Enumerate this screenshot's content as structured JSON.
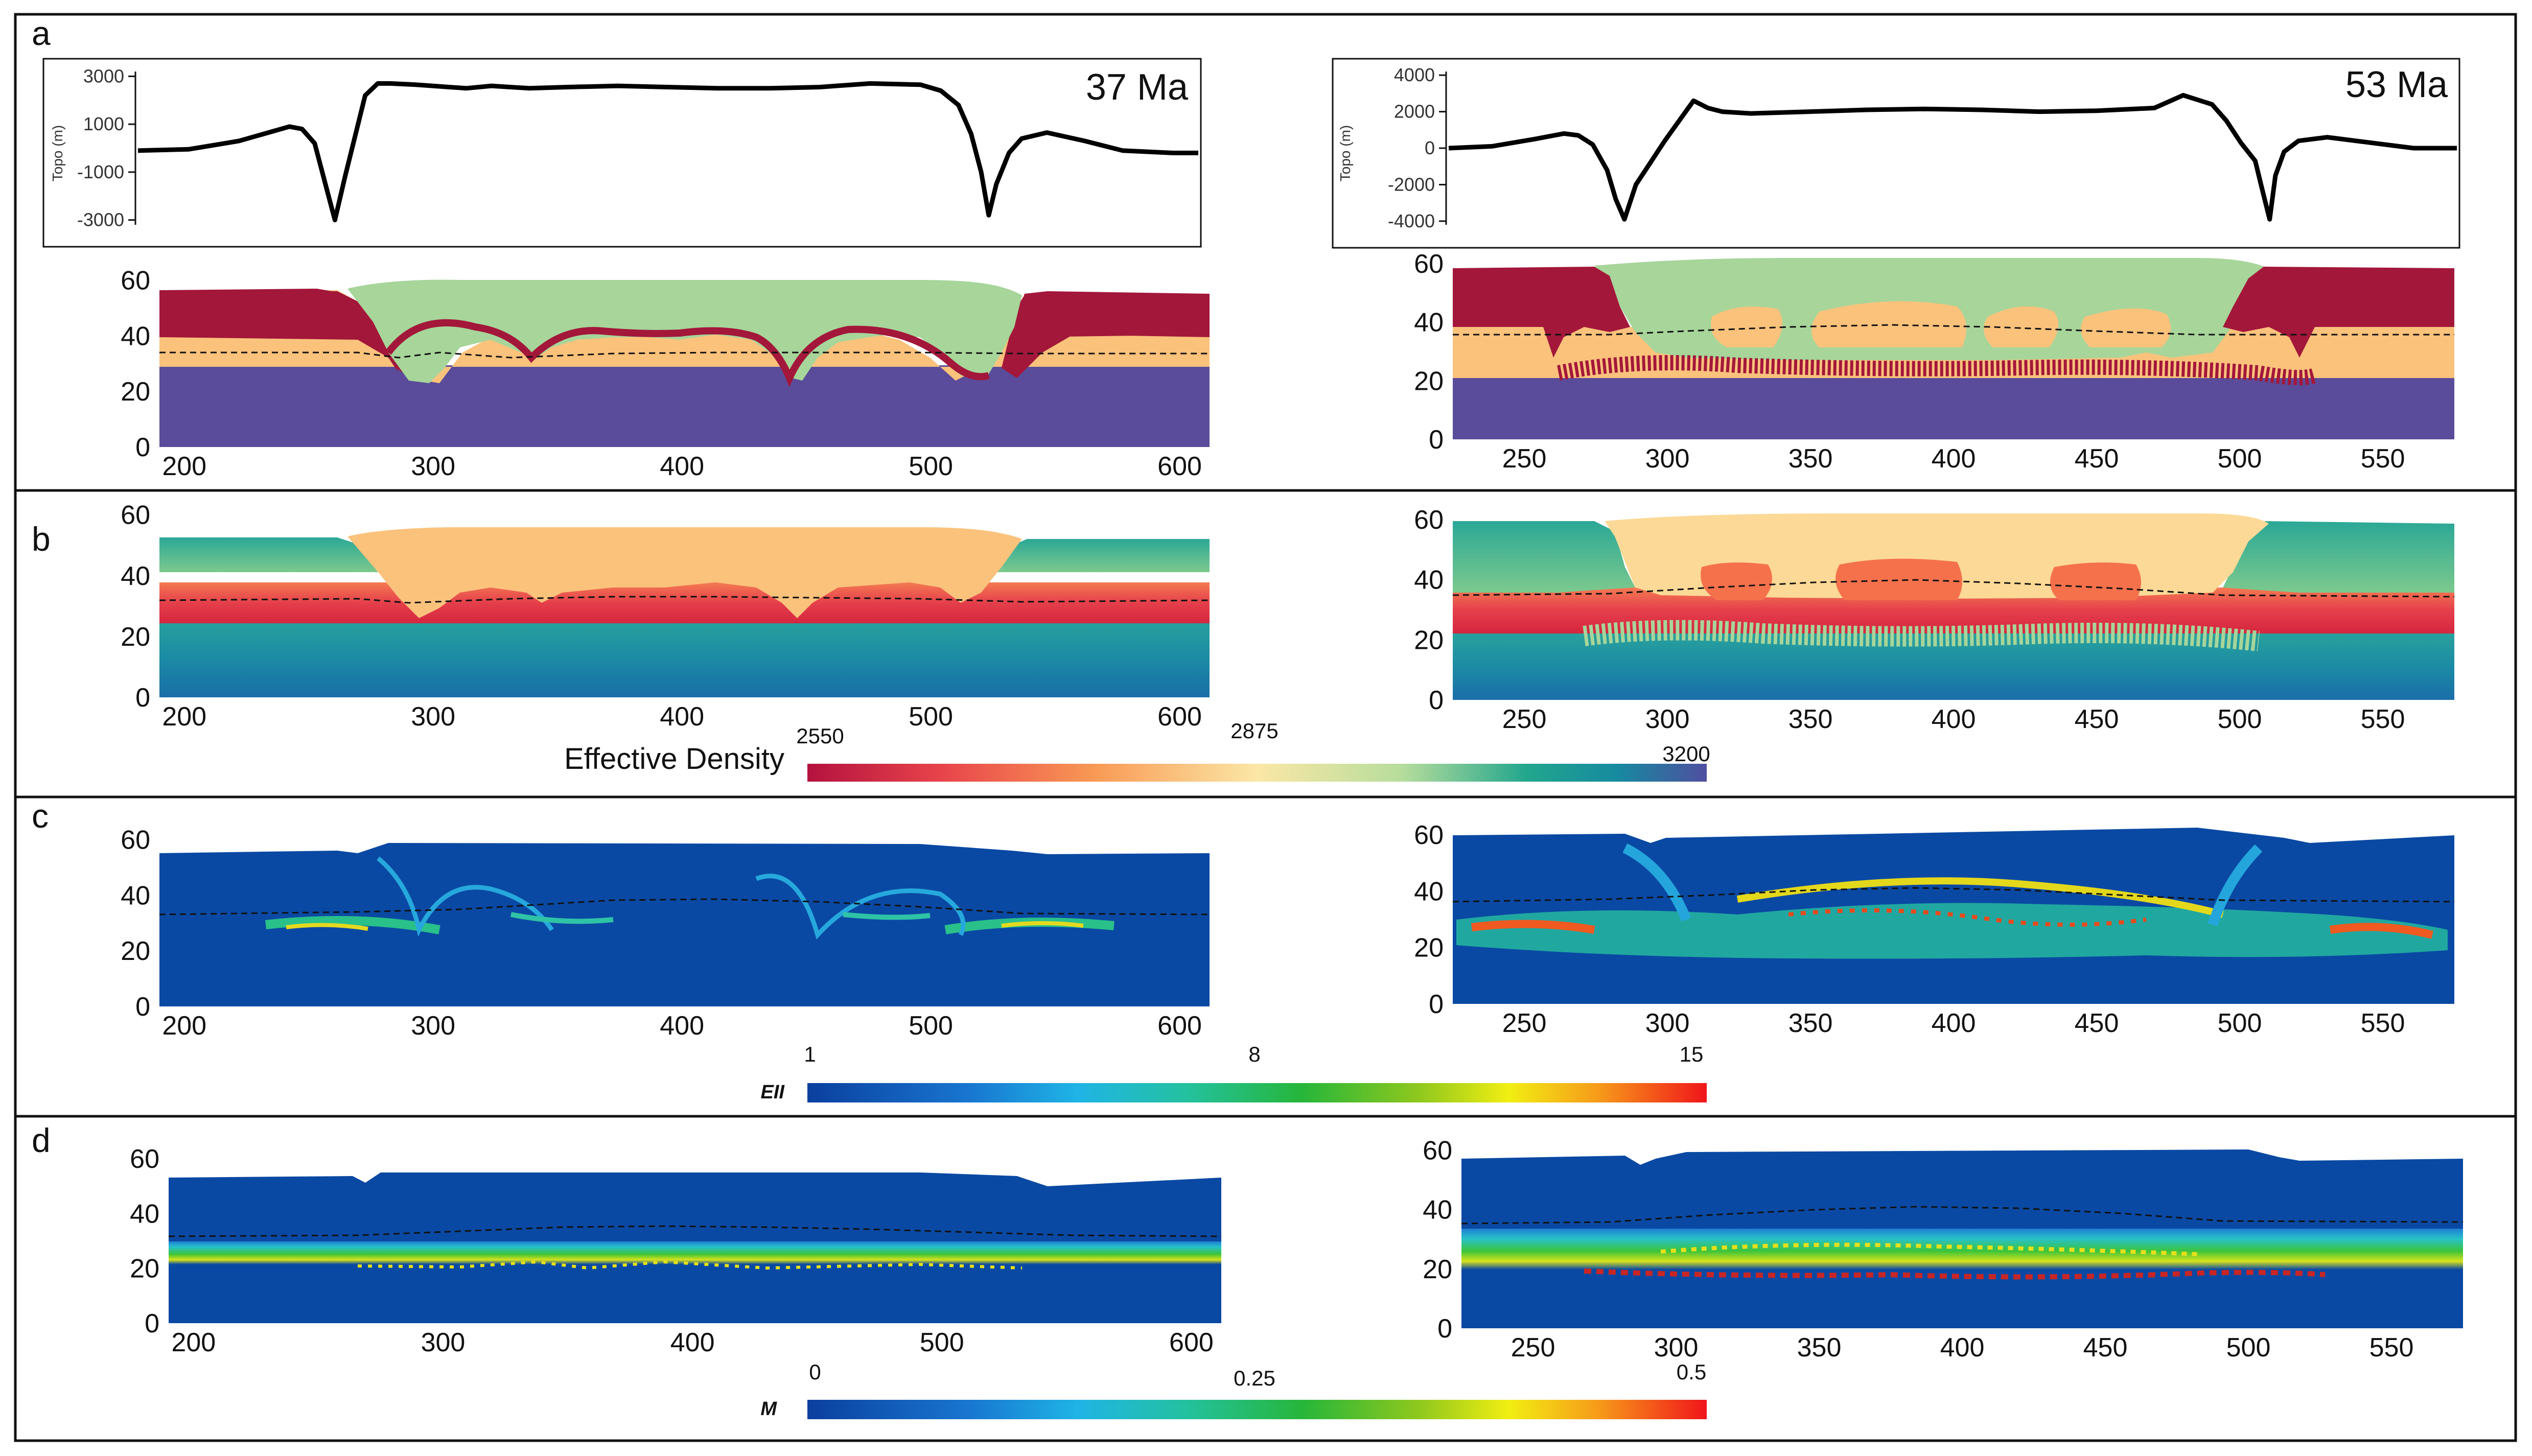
{
  "panels": {
    "a": {
      "label": "a"
    },
    "b": {
      "label": "b"
    },
    "c": {
      "label": "c"
    },
    "d": {
      "label": "d"
    }
  },
  "ages": {
    "left": "37 Ma",
    "right": "53 Ma"
  },
  "colorbars": {
    "density": {
      "title": "Effective Density",
      "ticks": [
        "2550",
        "2875",
        "3200"
      ]
    },
    "e2": {
      "title": "EII",
      "ticks": [
        "1",
        "8",
        "15"
      ]
    },
    "melt": {
      "title": "M",
      "ticks": [
        "0",
        "0.25",
        "0.5"
      ]
    }
  },
  "colors": {
    "upper_lithosphere": "#a3173a",
    "crust_green": "#a7d59a",
    "melt_orange": "#fbc27c",
    "mantle_purple": "#5a4c9a",
    "field_blue": "#0a49a3"
  },
  "chart_data": [
    {
      "type": "line",
      "title": "37 Ma",
      "ylabel": "Topo (m)",
      "yticks": [
        "3000",
        "1000",
        "-1000",
        "-3000"
      ],
      "ylim": [
        -3200,
        3200
      ],
      "xlim": [
        190,
        610
      ],
      "x": [
        190,
        210,
        230,
        250,
        255,
        260,
        262,
        265,
        268,
        272,
        276,
        280,
        285,
        290,
        300,
        320,
        330,
        345,
        360,
        380,
        400,
        420,
        440,
        460,
        480,
        500,
        508,
        515,
        520,
        524,
        527,
        530,
        535,
        540,
        550,
        565,
        580,
        600,
        610
      ],
      "y": [
        -100,
        -50,
        300,
        900,
        800,
        200,
        -600,
        -1800,
        -3000,
        -1200,
        500,
        2200,
        2700,
        2700,
        2650,
        2500,
        2600,
        2500,
        2550,
        2600,
        2550,
        2500,
        2500,
        2550,
        2700,
        2650,
        2400,
        1800,
        600,
        -1000,
        -2800,
        -1500,
        -200,
        400,
        650,
        300,
        -100,
        -200,
        -200
      ]
    },
    {
      "type": "line",
      "title": "53 Ma",
      "ylabel": "Topo (m)",
      "yticks": [
        "4000",
        "2000",
        "0",
        "-2000",
        "-4000"
      ],
      "ylim": [
        -4200,
        4200
      ],
      "xlim": [
        225,
        575
      ],
      "x": [
        225,
        240,
        255,
        265,
        270,
        275,
        280,
        283,
        286,
        290,
        295,
        300,
        305,
        310,
        315,
        320,
        330,
        350,
        370,
        390,
        410,
        430,
        450,
        470,
        480,
        490,
        495,
        500,
        505,
        507,
        510,
        512,
        515,
        520,
        530,
        545,
        560,
        575
      ],
      "y": [
        0,
        100,
        500,
        800,
        700,
        200,
        -1200,
        -2800,
        -3900,
        -2000,
        -800,
        400,
        1500,
        2600,
        2200,
        2000,
        1900,
        2000,
        2100,
        2150,
        2100,
        2000,
        2050,
        2200,
        2900,
        2400,
        1500,
        300,
        -700,
        -2000,
        -3900,
        -1500,
        -200,
        400,
        600,
        300,
        0,
        0
      ]
    },
    {
      "type": "heatmap",
      "panel": "a-left",
      "xticks": [
        200,
        300,
        400,
        500,
        600
      ],
      "xlim": [
        190,
        612
      ],
      "yticks": [
        0,
        20,
        40,
        60
      ],
      "ylim": [
        0,
        68
      ]
    },
    {
      "type": "heatmap",
      "panel": "a-right",
      "xticks": [
        250,
        300,
        350,
        400,
        450,
        500,
        550
      ],
      "xlim": [
        225,
        575
      ],
      "yticks": [
        0,
        20,
        40,
        60
      ],
      "ylim": [
        0,
        68
      ]
    },
    {
      "type": "heatmap",
      "panel": "b-left",
      "xticks": [
        200,
        300,
        400,
        500,
        600
      ],
      "xlim": [
        190,
        612
      ],
      "yticks": [
        0,
        20,
        40,
        60
      ],
      "ylim": [
        0,
        68
      ]
    },
    {
      "type": "heatmap",
      "panel": "b-right",
      "xticks": [
        250,
        300,
        350,
        400,
        450,
        500,
        550
      ],
      "xlim": [
        225,
        575
      ],
      "yticks": [
        "0",
        20,
        40,
        60
      ],
      "ylim": [
        0,
        68
      ]
    },
    {
      "type": "heatmap",
      "panel": "c-left",
      "xticks": [
        200,
        300,
        400,
        500,
        600
      ],
      "xlim": [
        190,
        612
      ],
      "yticks": [
        0,
        20,
        40,
        60
      ],
      "ylim": [
        0,
        68
      ]
    },
    {
      "type": "heatmap",
      "panel": "c-right",
      "xticks": [
        250,
        300,
        350,
        400,
        450,
        500,
        550
      ],
      "xlim": [
        225,
        575
      ],
      "yticks": [
        0,
        20,
        40,
        60
      ],
      "ylim": [
        0,
        68
      ]
    },
    {
      "type": "heatmap",
      "panel": "d-left",
      "xticks": [
        200,
        300,
        400,
        500,
        600
      ],
      "xlim": [
        190,
        612
      ],
      "yticks": [
        0,
        20,
        40,
        60
      ],
      "ylim": [
        0,
        68
      ]
    },
    {
      "type": "heatmap",
      "panel": "d-right",
      "xticks": [
        250,
        300,
        350,
        400,
        450,
        500,
        550
      ],
      "xlim": [
        225,
        575
      ],
      "yticks": [
        0,
        20,
        40,
        60
      ],
      "ylim": [
        0,
        68
      ]
    }
  ]
}
